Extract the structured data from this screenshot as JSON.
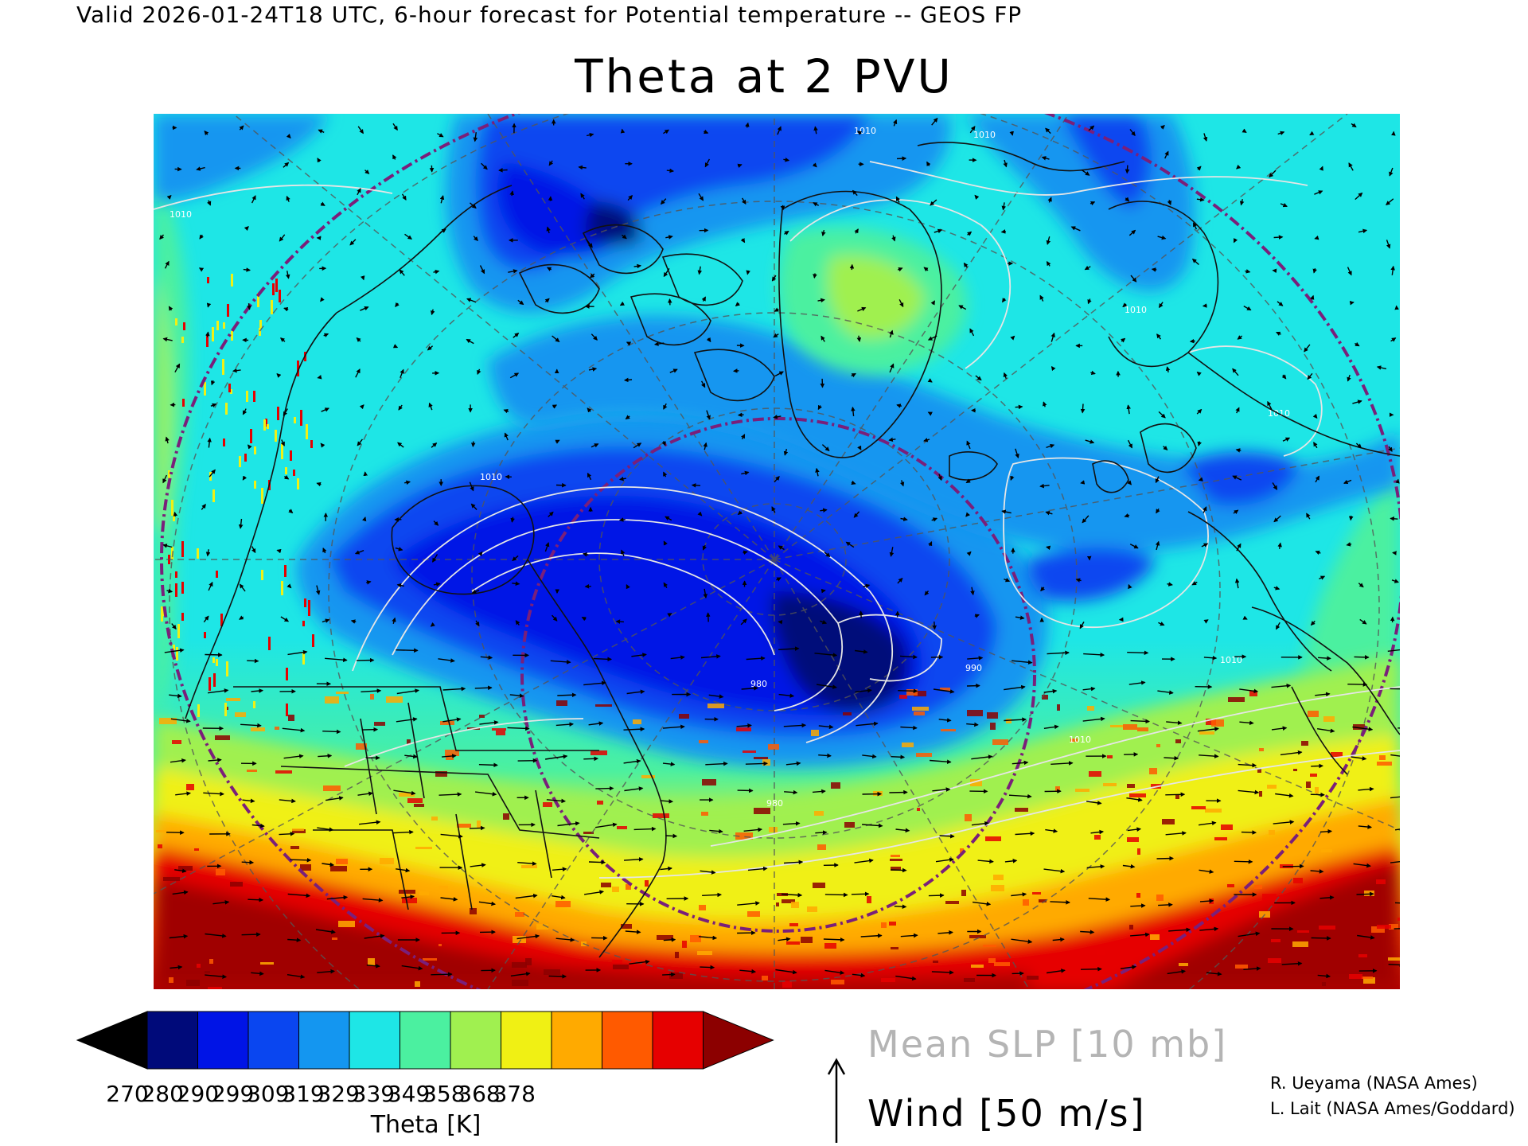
{
  "header": {
    "valid_line": "Valid 2026-01-24T18 UTC, 6-hour forecast for Potential temperature -- GEOS FP",
    "title": "Theta at 2 PVU"
  },
  "map": {
    "field": "Potential temperature on the 2 PVU surface",
    "projection": "polar stereographic, North Atlantic / North America / Europe sector",
    "contour_labels": [
      "1010",
      "1010",
      "1010",
      "1010",
      "1010",
      "990",
      "980",
      "1010",
      "1010",
      "1010",
      "980"
    ],
    "colors": {
      "land_outline": "#111111",
      "slp_contour": "#e6e6e6",
      "reference_circle": "#7a1f7a",
      "grid_lines": "#555555"
    }
  },
  "colorbar": {
    "title": "Theta [K]",
    "ticks": [
      "270",
      "280",
      "290",
      "299",
      "309",
      "319",
      "329",
      "339",
      "349",
      "358",
      "368",
      "378"
    ],
    "colors": [
      "#000000",
      "#000a7a",
      "#0014e6",
      "#0a46f0",
      "#1496f0",
      "#1ee6e6",
      "#4bf0a0",
      "#a0f050",
      "#f0f014",
      "#ffaa00",
      "#ff5a00",
      "#e60000",
      "#8c0000"
    ]
  },
  "legend": {
    "slp": "Mean SLP [10 mb]",
    "wind": "Wind [50 m/s]"
  },
  "credits": [
    "R. Ueyama (NASA Ames)",
    "L. Lait (NASA Ames/Goddard)"
  ]
}
